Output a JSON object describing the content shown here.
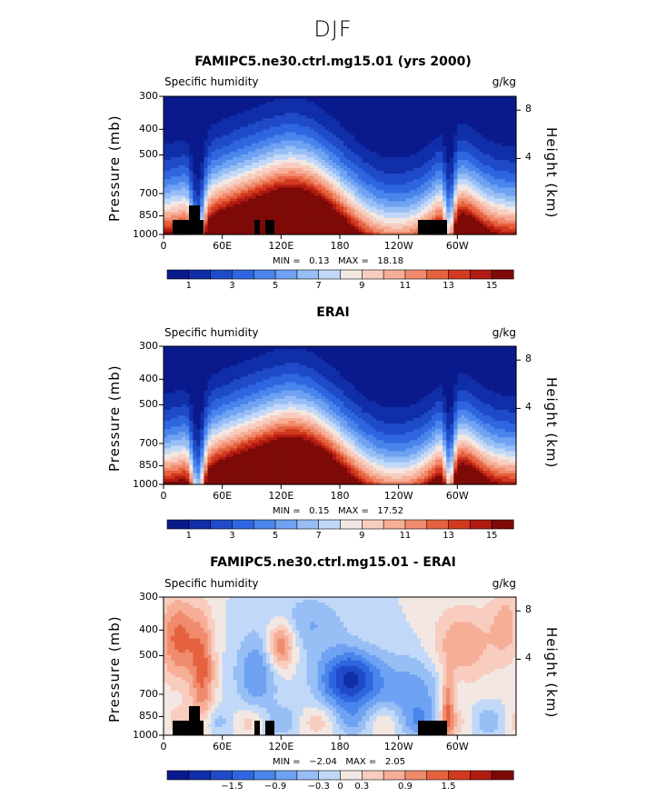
{
  "figure": {
    "title": "DJF"
  },
  "colormap": [
    "#0a1a8c",
    "#102ea8",
    "#1f4bc8",
    "#2f66e0",
    "#4a85ec",
    "#6fa2f2",
    "#97bef5",
    "#c1d8f8",
    "#f2e7e2",
    "#f8cdbf",
    "#f6ae97",
    "#f08b6e",
    "#e6623f",
    "#d2391f",
    "#b11b12",
    "#7e0a08"
  ],
  "chart_data": [
    {
      "type": "heatmap",
      "title": "FAMIPC5.ne30.ctrl.mg15.01 (yrs 2000)",
      "variable": "Specific humidity",
      "units": "g/kg",
      "ylabel": "Pressure (mb)",
      "y2label": "Height (km)",
      "x_ticks": [
        "0",
        "60E",
        "120E",
        "180",
        "120W",
        "60W"
      ],
      "y_ticks": [
        "300",
        "400",
        "500",
        "700",
        "850",
        "1000"
      ],
      "y2_ticks": [
        "8",
        "4"
      ],
      "min_label": "MIN =",
      "min": "0.13",
      "max_label": "MAX =",
      "max": "18.18",
      "colorbar_labels": [
        "1",
        "3",
        "5",
        "7",
        "9",
        "11",
        "13",
        "15"
      ],
      "contour_levels": [
        0,
        1,
        2,
        3,
        4,
        5,
        6,
        7,
        8,
        9,
        10,
        11,
        12,
        13,
        14,
        15,
        16
      ],
      "field": "moist",
      "topography": true
    },
    {
      "type": "heatmap",
      "title": "ERAI",
      "variable": "Specific humidity",
      "units": "g/kg",
      "ylabel": "Pressure (mb)",
      "y2label": "Height (km)",
      "x_ticks": [
        "0",
        "60E",
        "120E",
        "180",
        "120W",
        "60W"
      ],
      "y_ticks": [
        "300",
        "400",
        "500",
        "700",
        "850",
        "1000"
      ],
      "y2_ticks": [
        "8",
        "4"
      ],
      "min_label": "MIN =",
      "min": "0.15",
      "max_label": "MAX =",
      "max": "17.52",
      "colorbar_labels": [
        "1",
        "3",
        "5",
        "7",
        "9",
        "11",
        "13",
        "15"
      ],
      "contour_levels": [
        0,
        1,
        2,
        3,
        4,
        5,
        6,
        7,
        8,
        9,
        10,
        11,
        12,
        13,
        14,
        15,
        16
      ],
      "field": "moist",
      "topography": false
    },
    {
      "type": "heatmap",
      "title": "FAMIPC5.ne30.ctrl.mg15.01 - ERAI",
      "variable": "Specific humidity",
      "units": "g/kg",
      "ylabel": "Pressure (mb)",
      "y2label": "Height (km)",
      "x_ticks": [
        "0",
        "60E",
        "120E",
        "180",
        "120W",
        "60W"
      ],
      "y_ticks": [
        "300",
        "400",
        "500",
        "700",
        "850",
        "1000"
      ],
      "y2_ticks": [
        "8",
        "4"
      ],
      "min_label": "MIN =",
      "min": "−2.04",
      "max_label": "MAX =",
      "max": "2.05",
      "colorbar_labels": [
        "−1.5",
        "−0.9",
        "−0.3",
        "0",
        "0.3",
        "0.9",
        "1.5"
      ],
      "contour_levels": [
        -2.4,
        -2.1,
        -1.8,
        -1.5,
        -1.2,
        -0.9,
        -0.6,
        -0.3,
        0,
        0.3,
        0.6,
        0.9,
        1.2,
        1.5,
        1.8,
        2.1,
        2.4
      ],
      "field": "diff",
      "topography": true
    }
  ]
}
